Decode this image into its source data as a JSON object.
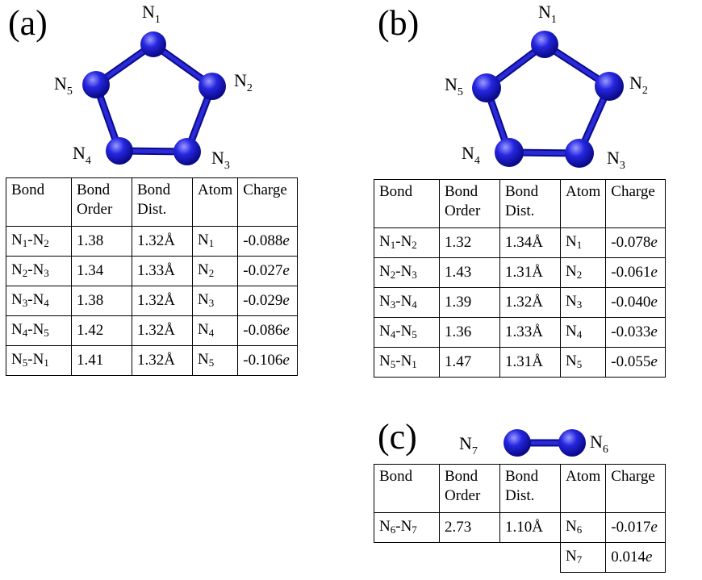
{
  "panels": {
    "a": {
      "label": "(a)",
      "atoms": [
        {
          "sym": "N",
          "idx": "1"
        },
        {
          "sym": "N",
          "idx": "2"
        },
        {
          "sym": "N",
          "idx": "3"
        },
        {
          "sym": "N",
          "idx": "4"
        },
        {
          "sym": "N",
          "idx": "5"
        }
      ],
      "headers": {
        "bond": "Bond",
        "order": [
          "Bond",
          "Order"
        ],
        "dist": [
          "Bond",
          "Dist."
        ],
        "atom": "Atom",
        "charge": "Charge"
      },
      "rows": [
        {
          "b1": "N",
          "i1": "1",
          "b2": "N",
          "i2": "2",
          "order": "1.38",
          "dist": "1.32Å",
          "atom": "N",
          "ai": "1",
          "charge": "-0.088",
          "unit": "e"
        },
        {
          "b1": "N",
          "i1": "2",
          "b2": "N",
          "i2": "3",
          "order": "1.34",
          "dist": "1.33Å",
          "atom": "N",
          "ai": "2",
          "charge": "-0.027",
          "unit": "e"
        },
        {
          "b1": "N",
          "i1": "3",
          "b2": "N",
          "i2": "4",
          "order": "1.38",
          "dist": "1.32Å",
          "atom": "N",
          "ai": "3",
          "charge": "-0.029",
          "unit": "e"
        },
        {
          "b1": "N",
          "i1": "4",
          "b2": "N",
          "i2": "5",
          "order": "1.42",
          "dist": "1.32Å",
          "atom": "N",
          "ai": "4",
          "charge": "-0.086",
          "unit": "e"
        },
        {
          "b1": "N",
          "i1": "5",
          "b2": "N",
          "i2": "1",
          "order": "1.41",
          "dist": "1.32Å",
          "atom": "N",
          "ai": "5",
          "charge": "-0.106",
          "unit": "e"
        }
      ]
    },
    "b": {
      "label": "(b)",
      "atoms": [
        {
          "sym": "N",
          "idx": "1"
        },
        {
          "sym": "N",
          "idx": "2"
        },
        {
          "sym": "N",
          "idx": "3"
        },
        {
          "sym": "N",
          "idx": "4"
        },
        {
          "sym": "N",
          "idx": "5"
        }
      ],
      "headers": {
        "bond": "Bond",
        "order": [
          "Bond",
          "Order"
        ],
        "dist": [
          "Bond",
          "Dist."
        ],
        "atom": "Atom",
        "charge": "Charge"
      },
      "rows": [
        {
          "b1": "N",
          "i1": "1",
          "b2": "N",
          "i2": "2",
          "order": "1.32",
          "dist": "1.34Å",
          "atom": "N",
          "ai": "1",
          "charge": "-0.078",
          "unit": "e"
        },
        {
          "b1": "N",
          "i1": "2",
          "b2": "N",
          "i2": "3",
          "order": "1.43",
          "dist": "1.31Å",
          "atom": "N",
          "ai": "2",
          "charge": "-0.061",
          "unit": "e"
        },
        {
          "b1": "N",
          "i1": "3",
          "b2": "N",
          "i2": "4",
          "order": "1.39",
          "dist": "1.32Å",
          "atom": "N",
          "ai": "3",
          "charge": "-0.040",
          "unit": "e"
        },
        {
          "b1": "N",
          "i1": "4",
          "b2": "N",
          "i2": "5",
          "order": "1.36",
          "dist": "1.33Å",
          "atom": "N",
          "ai": "4",
          "charge": "-0.033",
          "unit": "e"
        },
        {
          "b1": "N",
          "i1": "5",
          "b2": "N",
          "i2": "1",
          "order": "1.47",
          "dist": "1.31Å",
          "atom": "N",
          "ai": "5",
          "charge": "-0.055",
          "unit": "e"
        }
      ]
    },
    "c": {
      "label": "(c)",
      "atoms": [
        {
          "sym": "N",
          "idx": "7"
        },
        {
          "sym": "N",
          "idx": "6"
        }
      ],
      "headers": {
        "bond": "Bond",
        "order": [
          "Bond",
          "Order"
        ],
        "dist": [
          "Bond",
          "Dist."
        ],
        "atom": "Atom",
        "charge": "Charge"
      },
      "rows": [
        {
          "b1": "N",
          "i1": "6",
          "b2": "N",
          "i2": "7",
          "order": "2.73",
          "dist": "1.10Å",
          "atom": "N",
          "ai": "6",
          "charge": "-0.017",
          "unit": "e"
        },
        {
          "b1": "",
          "i1": "",
          "b2": "",
          "i2": "",
          "order": "",
          "dist": "",
          "atom": "N",
          "ai": "7",
          "charge": "0.014",
          "unit": "e"
        }
      ]
    }
  },
  "colors": {
    "atom": "#2626e0",
    "atom_highlight": "#9a9aff",
    "atom_dark": "#0a0a8a",
    "bond": "#2a2ad8"
  }
}
